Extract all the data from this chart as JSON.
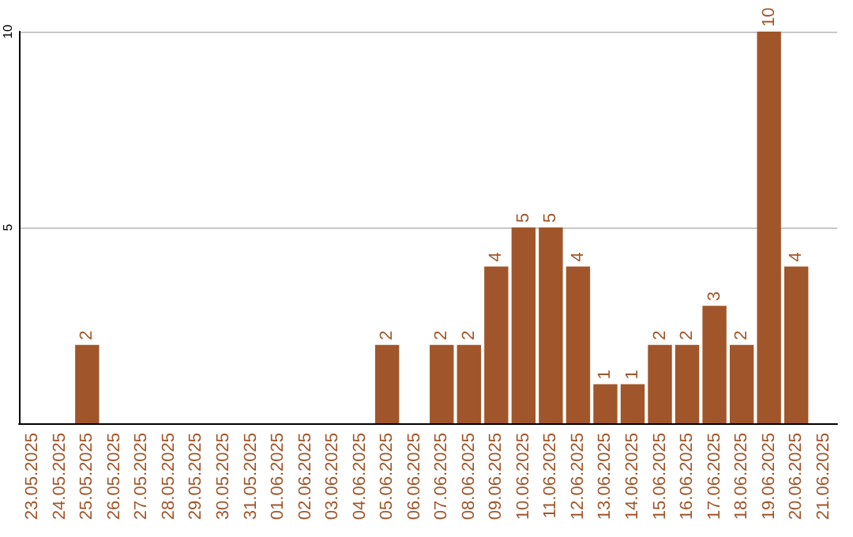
{
  "chart_data": {
    "type": "bar",
    "categories": [
      "23.05.2025",
      "24.05.2025",
      "25.05.2025",
      "26.05.2025",
      "27.05.2025",
      "28.05.2025",
      "29.05.2025",
      "30.05.2025",
      "31.05.2025",
      "01.06.2025",
      "02.06.2025",
      "03.06.2025",
      "04.06.2025",
      "05.06.2025",
      "06.06.2025",
      "07.06.2025",
      "08.06.2025",
      "09.06.2025",
      "10.06.2025",
      "11.06.2025",
      "12.06.2025",
      "13.06.2025",
      "14.06.2025",
      "15.06.2025",
      "16.06.2025",
      "17.06.2025",
      "18.06.2025",
      "19.06.2025",
      "20.06.2025",
      "21.06.2025"
    ],
    "values": [
      0,
      0,
      2,
      0,
      0,
      0,
      0,
      0,
      0,
      0,
      0,
      0,
      0,
      2,
      0,
      2,
      2,
      4,
      5,
      5,
      4,
      1,
      1,
      2,
      2,
      3,
      2,
      10,
      4,
      0
    ],
    "value_labels": [
      null,
      null,
      "2",
      null,
      null,
      null,
      null,
      null,
      null,
      null,
      null,
      null,
      null,
      "2",
      null,
      "2",
      "2",
      "4",
      "5",
      "5",
      "4",
      "1",
      "1",
      "2",
      "2",
      "3",
      "2",
      "10",
      "4",
      null
    ],
    "color": "#a0562a",
    "ylim": [
      0,
      10
    ],
    "yticks": [
      {
        "value": 0,
        "label": null
      },
      5,
      10
    ],
    "grid": "y"
  }
}
